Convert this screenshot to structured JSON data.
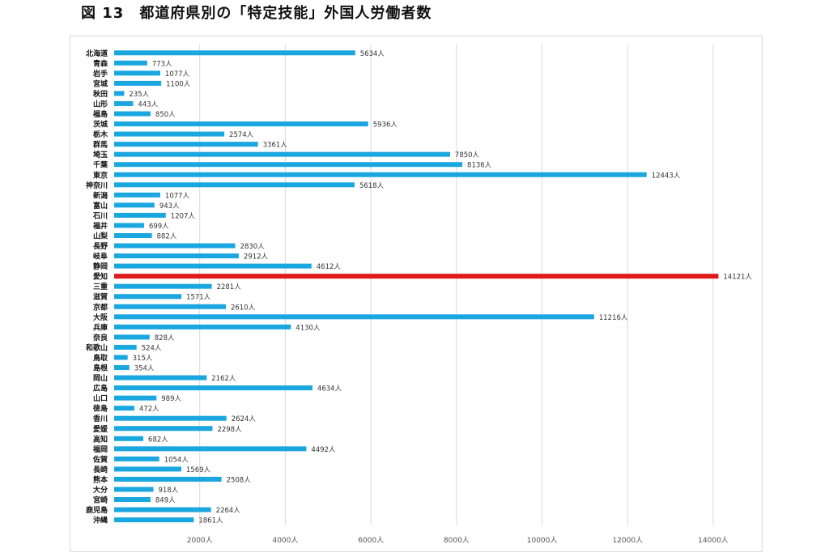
{
  "page": {
    "title": "図 13　都道府県別の「特定技能」外国人労働者数"
  },
  "colors": {
    "bar": "#1aa7e0",
    "highlight": "#e01b1b",
    "grid": "#d9d9d9"
  },
  "chart_data": {
    "type": "bar",
    "orientation": "horizontal",
    "title": "図 13　都道府県別の「特定技能」外国人労働者数",
    "value_suffix": "人",
    "xlim": [
      0,
      14000
    ],
    "xticks": [
      2000,
      4000,
      6000,
      8000,
      10000,
      12000,
      14000
    ],
    "xtick_labels": [
      "2000人",
      "4000人",
      "6000人",
      "8000人",
      "10000人",
      "12000人",
      "14000人"
    ],
    "grid": true,
    "highlight": "愛知",
    "categories": [
      "北海道",
      "青森",
      "岩手",
      "宮城",
      "秋田",
      "山形",
      "福島",
      "茨城",
      "栃木",
      "群馬",
      "埼玉",
      "千葉",
      "東京",
      "神奈川",
      "新潟",
      "富山",
      "石川",
      "福井",
      "山梨",
      "長野",
      "岐阜",
      "静岡",
      "愛知",
      "三重",
      "滋賀",
      "京都",
      "大阪",
      "兵庫",
      "奈良",
      "和歌山",
      "鳥取",
      "島根",
      "岡山",
      "広島",
      "山口",
      "徳島",
      "香川",
      "愛媛",
      "高知",
      "福岡",
      "佐賀",
      "長崎",
      "熊本",
      "大分",
      "宮崎",
      "鹿児島",
      "沖縄"
    ],
    "values": [
      5634,
      773,
      1077,
      1100,
      235,
      443,
      850,
      5936,
      2574,
      3361,
      7850,
      8136,
      12443,
      5618,
      1077,
      943,
      1207,
      699,
      882,
      2830,
      2912,
      4612,
      14121,
      2281,
      1571,
      2610,
      11216,
      4130,
      828,
      524,
      315,
      354,
      2162,
      4634,
      989,
      472,
      2624,
      2298,
      682,
      4492,
      1054,
      1569,
      2508,
      918,
      849,
      2264,
      1861
    ],
    "data_labels": [
      "5634人",
      "773人",
      "1077人",
      "1100人",
      "235人",
      "443人",
      "850人",
      "5936人",
      "2574人",
      "3361人",
      "7850人",
      "8136人",
      "12443人",
      "5618人",
      "1077人",
      "943人",
      "1207人",
      "699人",
      "882人",
      "2830人",
      "2912人",
      "4612人",
      "14121人",
      "2281人",
      "1571人",
      "2610人",
      "11216人",
      "4130人",
      "828人",
      "524人",
      "315人",
      "354人",
      "2162人",
      "4634人",
      "989人",
      "472人",
      "2624人",
      "2298人",
      "682人",
      "4492人",
      "1054人",
      "1569人",
      "2508人",
      "918人",
      "849人",
      "2264人",
      "1861人"
    ]
  }
}
